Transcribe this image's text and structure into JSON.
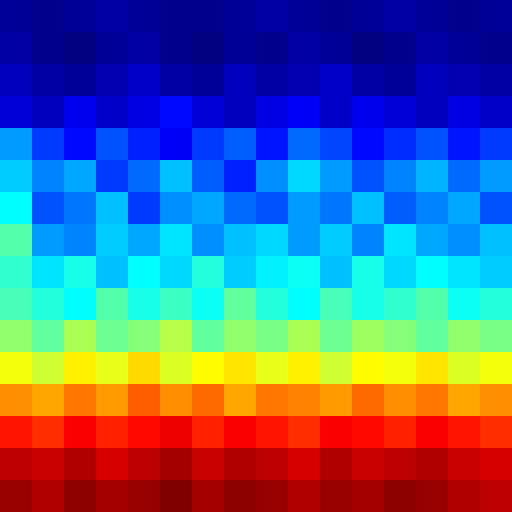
{
  "chart_data": {
    "type": "heatmap",
    "color": "jet",
    "tick_labels": false,
    "grid": false,
    "values": [
      [
        0.09,
        0.08,
        0.09,
        0.1,
        0.09,
        0.08,
        0.08,
        0.09,
        0.1,
        0.09,
        0.08,
        0.09,
        0.1,
        0.09,
        0.08,
        0.09
      ],
      [
        0.1,
        0.08,
        0.07,
        0.09,
        0.1,
        0.08,
        0.07,
        0.09,
        0.08,
        0.1,
        0.09,
        0.07,
        0.08,
        0.1,
        0.09,
        0.08
      ],
      [
        0.12,
        0.1,
        0.09,
        0.11,
        0.13,
        0.1,
        0.09,
        0.12,
        0.1,
        0.11,
        0.13,
        0.1,
        0.09,
        0.12,
        0.11,
        0.1
      ],
      [
        0.14,
        0.12,
        0.16,
        0.13,
        0.15,
        0.18,
        0.14,
        0.12,
        0.15,
        0.17,
        0.13,
        0.16,
        0.14,
        0.12,
        0.15,
        0.13
      ],
      [
        0.3,
        0.22,
        0.18,
        0.24,
        0.2,
        0.17,
        0.22,
        0.25,
        0.19,
        0.26,
        0.23,
        0.18,
        0.21,
        0.24,
        0.19,
        0.22
      ],
      [
        0.34,
        0.28,
        0.31,
        0.22,
        0.26,
        0.33,
        0.25,
        0.2,
        0.29,
        0.35,
        0.3,
        0.24,
        0.28,
        0.32,
        0.26,
        0.3
      ],
      [
        0.38,
        0.24,
        0.27,
        0.33,
        0.22,
        0.29,
        0.31,
        0.26,
        0.24,
        0.3,
        0.27,
        0.33,
        0.25,
        0.28,
        0.31,
        0.24
      ],
      [
        0.45,
        0.3,
        0.28,
        0.34,
        0.31,
        0.36,
        0.29,
        0.33,
        0.35,
        0.3,
        0.34,
        0.28,
        0.36,
        0.31,
        0.29,
        0.33
      ],
      [
        0.42,
        0.36,
        0.4,
        0.33,
        0.38,
        0.35,
        0.41,
        0.34,
        0.37,
        0.39,
        0.33,
        0.4,
        0.35,
        0.38,
        0.36,
        0.34
      ],
      [
        0.44,
        0.41,
        0.38,
        0.45,
        0.4,
        0.43,
        0.39,
        0.46,
        0.41,
        0.38,
        0.44,
        0.4,
        0.42,
        0.45,
        0.39,
        0.41
      ],
      [
        0.5,
        0.46,
        0.52,
        0.47,
        0.49,
        0.53,
        0.46,
        0.5,
        0.48,
        0.52,
        0.47,
        0.51,
        0.49,
        0.46,
        0.5,
        0.48
      ],
      [
        0.58,
        0.55,
        0.6,
        0.57,
        0.62,
        0.56,
        0.59,
        0.61,
        0.57,
        0.6,
        0.55,
        0.59,
        0.58,
        0.61,
        0.56,
        0.58
      ],
      [
        0.68,
        0.66,
        0.7,
        0.67,
        0.72,
        0.68,
        0.71,
        0.66,
        0.7,
        0.69,
        0.67,
        0.71,
        0.68,
        0.7,
        0.66,
        0.68
      ],
      [
        0.78,
        0.76,
        0.8,
        0.77,
        0.79,
        0.81,
        0.77,
        0.8,
        0.78,
        0.76,
        0.8,
        0.79,
        0.77,
        0.8,
        0.78,
        0.76
      ],
      [
        0.85,
        0.84,
        0.86,
        0.83,
        0.85,
        0.87,
        0.84,
        0.86,
        0.85,
        0.83,
        0.86,
        0.84,
        0.85,
        0.86,
        0.84,
        0.83
      ],
      [
        0.88,
        0.86,
        0.89,
        0.87,
        0.88,
        0.9,
        0.87,
        0.89,
        0.88,
        0.86,
        0.88,
        0.87,
        0.89,
        0.88,
        0.86,
        0.85
      ]
    ]
  }
}
